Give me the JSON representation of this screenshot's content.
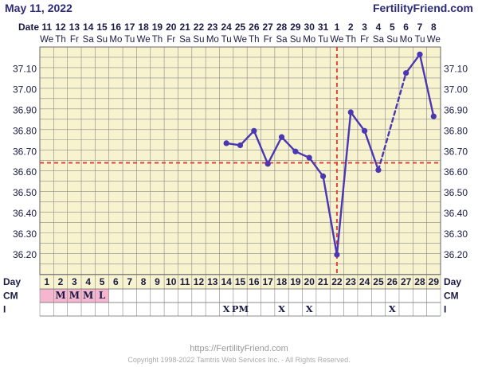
{
  "header": {
    "date": "May 11, 2022",
    "site": "FertilityFriend.com"
  },
  "colors": {
    "background": "#f7f3cf",
    "grid": "#8a8a8a",
    "axis_text": "#1a1a44",
    "header_text": "#2c2a7a",
    "line": "#4b36b3",
    "coverline": "#e0463c",
    "ovulation": "#e0463c",
    "menses": "#f5b7cf"
  },
  "labels": {
    "date_row": "Date",
    "day_row": "Day",
    "cm_row": "CM",
    "i_row": "I"
  },
  "chart_data": {
    "type": "line",
    "dates": [
      "11",
      "12",
      "13",
      "14",
      "15",
      "16",
      "17",
      "18",
      "19",
      "20",
      "21",
      "22",
      "23",
      "24",
      "25",
      "26",
      "27",
      "28",
      "29",
      "30",
      "31",
      "1",
      "2",
      "3",
      "4",
      "5",
      "6",
      "7",
      "8"
    ],
    "weekdays": [
      "We",
      "Th",
      "Fr",
      "Sa",
      "Su",
      "Mo",
      "Tu",
      "We",
      "Th",
      "Fr",
      "Sa",
      "Su",
      "Mo",
      "Tu",
      "We",
      "Th",
      "Fr",
      "Sa",
      "Su",
      "Mo",
      "Tu",
      "We",
      "Th",
      "Fr",
      "Sa",
      "Su",
      "Mo",
      "Tu",
      "We"
    ],
    "days": [
      1,
      2,
      3,
      4,
      5,
      6,
      7,
      8,
      9,
      10,
      11,
      12,
      13,
      14,
      15,
      16,
      17,
      18,
      19,
      20,
      21,
      22,
      23,
      24,
      25,
      26,
      27,
      28,
      29
    ],
    "y_ticks": [
      "37.10",
      "37.00",
      "36.90",
      "36.80",
      "36.70",
      "36.60",
      "36.50",
      "36.40",
      "36.30",
      "36.20"
    ],
    "ylim": [
      36.12,
      37.19
    ],
    "temps": [
      null,
      null,
      null,
      null,
      null,
      null,
      null,
      null,
      null,
      null,
      null,
      null,
      null,
      36.74,
      36.73,
      36.8,
      36.64,
      36.77,
      36.7,
      36.67,
      36.58,
      36.2,
      36.89,
      36.8,
      36.61,
      null,
      37.08,
      37.17,
      36.87
    ],
    "dashed_segments": [
      [
        25,
        27
      ]
    ],
    "coverline": 36.645,
    "ovulation_day": 22,
    "cm": [
      "",
      "M",
      "M",
      "M",
      "L",
      "",
      "",
      "",
      "",
      "",
      "",
      "",
      "",
      "",
      "",
      "",
      "",
      "",
      "",
      "",
      "",
      "",
      "",
      "",
      "",
      "",
      "",
      "",
      ""
    ],
    "menses_days": [
      1,
      2,
      3,
      4,
      5
    ],
    "intercourse": [
      "",
      "",
      "",
      "",
      "",
      "",
      "",
      "",
      "",
      "",
      "",
      "",
      "",
      "X",
      "PM",
      "",
      "",
      "X",
      "",
      "X",
      "",
      "",
      "",
      "",
      "",
      "X",
      "",
      "",
      ""
    ]
  },
  "footer": {
    "url": "https://FertilityFriend.com",
    "copyright": "Copyright 1998-2022 Tamtris Web Services Inc. - All Rights Reserved."
  }
}
